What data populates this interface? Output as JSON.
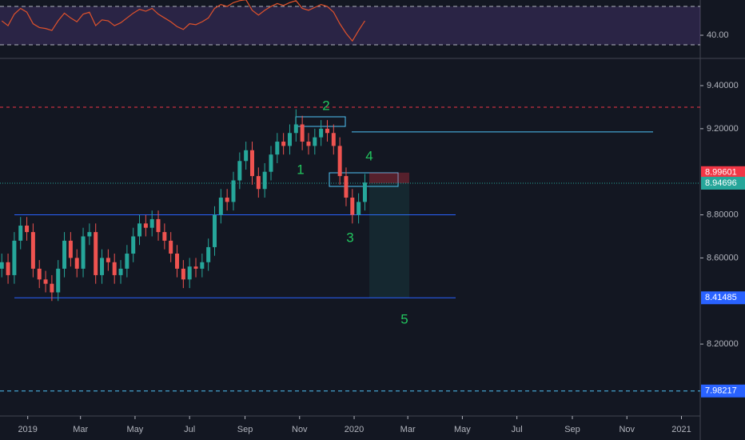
{
  "chart_data": {
    "type": "candlestick",
    "x": [
      "2018-12-03",
      "2018-12-10",
      "2018-12-17",
      "2018-12-24",
      "2018-12-31",
      "2019-01-07",
      "2019-01-14",
      "2019-01-21",
      "2019-01-28",
      "2019-02-04",
      "2019-02-11",
      "2019-02-18",
      "2019-02-25",
      "2019-03-04",
      "2019-03-11",
      "2019-03-18",
      "2019-03-25",
      "2019-04-01",
      "2019-04-08",
      "2019-04-15",
      "2019-04-22",
      "2019-04-29",
      "2019-05-06",
      "2019-05-13",
      "2019-05-20",
      "2019-05-27",
      "2019-06-03",
      "2019-06-10",
      "2019-06-17",
      "2019-06-24",
      "2019-07-01",
      "2019-07-08",
      "2019-07-15",
      "2019-07-22",
      "2019-07-29",
      "2019-08-05",
      "2019-08-12",
      "2019-08-19",
      "2019-08-26",
      "2019-09-02",
      "2019-09-09",
      "2019-09-16",
      "2019-09-23",
      "2019-09-30",
      "2019-10-07",
      "2019-10-14",
      "2019-10-21",
      "2019-10-28",
      "2019-11-04",
      "2019-11-11",
      "2019-11-18",
      "2019-11-25",
      "2019-12-02",
      "2019-12-09",
      "2019-12-16",
      "2019-12-23",
      "2019-12-30",
      "2020-01-06",
      "2020-01-13"
    ],
    "open": [
      8.55,
      8.58,
      8.52,
      8.68,
      8.75,
      8.72,
      8.55,
      8.5,
      8.48,
      8.44,
      8.55,
      8.68,
      8.6,
      8.55,
      8.7,
      8.72,
      8.52,
      8.6,
      8.58,
      8.52,
      8.55,
      8.62,
      8.7,
      8.76,
      8.74,
      8.78,
      8.72,
      8.68,
      8.62,
      8.55,
      8.5,
      8.56,
      8.55,
      8.58,
      8.65,
      8.8,
      8.88,
      8.86,
      8.96,
      9.05,
      9.1,
      8.98,
      8.92,
      9.0,
      9.08,
      9.14,
      9.12,
      9.18,
      9.22,
      9.14,
      9.12,
      9.16,
      9.2,
      9.18,
      9.12,
      8.98,
      8.88,
      8.8,
      8.86
    ],
    "high": [
      8.62,
      8.62,
      8.72,
      8.79,
      8.79,
      8.76,
      8.59,
      8.54,
      8.52,
      8.59,
      8.72,
      8.72,
      8.64,
      8.74,
      8.76,
      8.76,
      8.64,
      8.64,
      8.62,
      8.59,
      8.66,
      8.74,
      8.8,
      8.8,
      8.82,
      8.82,
      8.76,
      8.72,
      8.66,
      8.59,
      8.6,
      8.6,
      8.62,
      8.69,
      8.84,
      8.92,
      8.92,
      9.0,
      9.09,
      9.14,
      9.14,
      9.02,
      9.04,
      9.12,
      9.18,
      9.18,
      9.22,
      9.29,
      9.26,
      9.18,
      9.2,
      9.24,
      9.24,
      9.22,
      9.16,
      9.02,
      8.92,
      8.9,
      8.99
    ],
    "low": [
      8.51,
      8.48,
      8.48,
      8.64,
      8.68,
      8.51,
      8.46,
      8.44,
      8.4,
      8.4,
      8.51,
      8.56,
      8.51,
      8.51,
      8.66,
      8.48,
      8.48,
      8.54,
      8.48,
      8.48,
      8.51,
      8.58,
      8.66,
      8.7,
      8.7,
      8.68,
      8.64,
      8.58,
      8.51,
      8.46,
      8.46,
      8.51,
      8.51,
      8.54,
      8.61,
      8.76,
      8.82,
      8.82,
      8.92,
      9.01,
      8.94,
      8.88,
      8.88,
      8.96,
      9.04,
      9.08,
      9.08,
      9.14,
      9.1,
      9.08,
      9.08,
      9.12,
      9.14,
      9.08,
      8.94,
      8.84,
      8.76,
      8.76,
      8.82
    ],
    "close": [
      8.58,
      8.52,
      8.68,
      8.75,
      8.72,
      8.55,
      8.5,
      8.48,
      8.44,
      8.55,
      8.68,
      8.6,
      8.55,
      8.7,
      8.72,
      8.52,
      8.6,
      8.58,
      8.52,
      8.55,
      8.62,
      8.7,
      8.76,
      8.74,
      8.78,
      8.72,
      8.68,
      8.62,
      8.55,
      8.5,
      8.56,
      8.55,
      8.58,
      8.65,
      8.8,
      8.88,
      8.86,
      8.96,
      9.05,
      9.1,
      8.98,
      8.92,
      9.0,
      9.08,
      9.14,
      9.12,
      9.18,
      9.22,
      9.14,
      9.12,
      9.16,
      9.2,
      9.18,
      9.12,
      8.98,
      8.88,
      8.8,
      8.86,
      8.95
    ],
    "up_color": "#26a69a",
    "down_color": "#ef5350",
    "xlim": [
      "2018-12-01",
      "2021-01-22"
    ],
    "xticks": [
      {
        "value": "2019-01-01",
        "label": "2019"
      },
      {
        "value": "2019-03-01",
        "label": "Mar"
      },
      {
        "value": "2019-05-01",
        "label": "May"
      },
      {
        "value": "2019-07-01",
        "label": "Jul"
      },
      {
        "value": "2019-09-01",
        "label": "Sep"
      },
      {
        "value": "2019-11-01",
        "label": "Nov"
      },
      {
        "value": "2020-01-01",
        "label": "2020"
      },
      {
        "value": "2020-03-01",
        "label": "Mar"
      },
      {
        "value": "2020-05-01",
        "label": "May"
      },
      {
        "value": "2020-07-01",
        "label": "Jul"
      },
      {
        "value": "2020-09-01",
        "label": "Sep"
      },
      {
        "value": "2020-11-01",
        "label": "Nov"
      },
      {
        "value": "2021-01-01",
        "label": "2021"
      }
    ],
    "ylim": [
      7.866,
      9.519
    ],
    "yticks": [
      {
        "value": 9.4,
        "label": "9.40000"
      },
      {
        "value": 9.2,
        "label": "9.20000"
      },
      {
        "value": 8.8,
        "label": "8.80000"
      },
      {
        "value": 8.6,
        "label": "8.60000"
      },
      {
        "value": 8.2,
        "label": "8.20000"
      }
    ],
    "price_labels": [
      {
        "value": 8.99601,
        "label": "8.99601",
        "color": "#f23645"
      },
      {
        "value": 8.94696,
        "label": "8.94696",
        "color": "#26a69a"
      },
      {
        "value": 8.41485,
        "label": "8.41485",
        "color": "#2962ff"
      },
      {
        "value": 7.98217,
        "label": "7.98217",
        "color": "#2962ff"
      }
    ],
    "levels": [
      9.3,
      9.185,
      8.8
    ],
    "annotations": [
      "1",
      "2",
      "3",
      "4",
      "5"
    ],
    "rsi": {
      "color": "#e0522b",
      "ylim": [
        16.7,
        76.7
      ],
      "yticks": [
        {
          "value": 40,
          "label": "40.00"
        }
      ],
      "bands": [
        70,
        30
      ],
      "values": [
        55,
        50,
        62,
        68,
        64,
        52,
        48,
        47,
        45,
        55,
        63,
        58,
        54,
        62,
        64,
        50,
        56,
        55,
        50,
        53,
        58,
        63,
        67,
        65,
        68,
        62,
        58,
        54,
        49,
        46,
        52,
        51,
        54,
        58,
        68,
        72,
        70,
        74,
        76,
        77,
        66,
        61,
        66,
        70,
        73,
        71,
        74,
        76,
        68,
        66,
        69,
        72,
        70,
        64,
        52,
        42,
        34,
        45,
        55
      ]
    }
  }
}
